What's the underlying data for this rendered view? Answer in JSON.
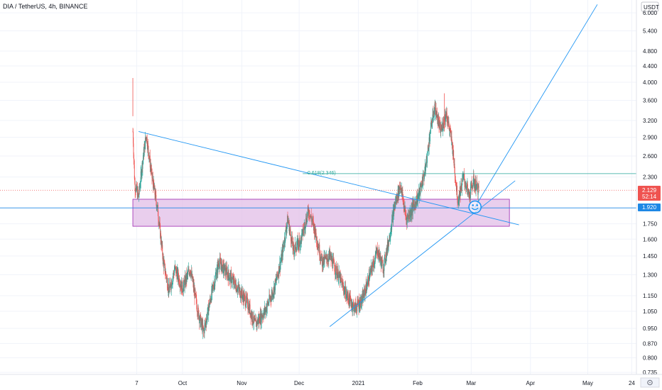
{
  "header": {
    "symbol_title": "DIA / TetherUS, 4h, BINANCE"
  },
  "colors": {
    "up": "#26a69a",
    "down": "#ef5350",
    "line": "#2196f3",
    "zone_fill": "#e1bee7",
    "zone_border": "#9c27b0",
    "level_line": "#1e88e5",
    "fib_line": "#26a69a",
    "price_tag": "#ef5350"
  },
  "chart_data": {
    "type": "candlestick",
    "title": "DIA / TetherUS, 4h, BINANCE",
    "y_scale": "log",
    "currency": "USDT",
    "ylim": [
      0.71,
      6.3
    ],
    "x_tick_labels": [
      "7",
      "Oct",
      "Nov",
      "Dec",
      "2021",
      "Feb",
      "Mar",
      "Apr",
      "May",
      "24"
    ],
    "y_tick_labels": [
      "6.000",
      "5.400",
      "4.800",
      "4.400",
      "4.000",
      "3.600",
      "3.200",
      "2.900",
      "2.600",
      "2.300",
      "1.750",
      "1.600",
      "1.450",
      "1.300",
      "1.150",
      "1.050",
      "0.950",
      "0.870",
      "0.800",
      "0.735"
    ],
    "y_ticks": [
      6.0,
      5.4,
      4.8,
      4.4,
      4.0,
      3.6,
      3.2,
      2.9,
      2.6,
      2.3,
      1.75,
      1.6,
      1.45,
      1.3,
      1.15,
      1.05,
      0.95,
      0.87,
      0.8,
      0.735
    ],
    "last_price": {
      "label": "2.129",
      "value": 2.129,
      "countdown": "52:14"
    },
    "support_level": {
      "label": "1.920",
      "value": 1.92
    },
    "fib_level": {
      "label": "0.618(2.346)",
      "value": 2.346
    },
    "zone": {
      "top": 2.02,
      "bottom": 1.725
    },
    "price_path": [
      [
        "Sep 05",
        3.0
      ],
      [
        "Sep 06",
        2.2
      ],
      [
        "Sep 08",
        2.05
      ],
      [
        "Sep 10",
        2.5
      ],
      [
        "Sep 12",
        2.95
      ],
      [
        "Sep 15",
        2.3
      ],
      [
        "Sep 18",
        1.9
      ],
      [
        "Sep 21",
        1.4
      ],
      [
        "Sep 24",
        1.18
      ],
      [
        "Sep 27",
        1.35
      ],
      [
        "Oct 01",
        1.2
      ],
      [
        "Oct 05",
        1.35
      ],
      [
        "Oct 09",
        1.05
      ],
      [
        "Oct 12",
        0.93
      ],
      [
        "Oct 16",
        1.15
      ],
      [
        "Oct 20",
        1.4
      ],
      [
        "Oct 25",
        1.3
      ],
      [
        "Oct 30",
        1.2
      ],
      [
        "Nov 04",
        1.1
      ],
      [
        "Nov 08",
        0.97
      ],
      [
        "Nov 13",
        1.05
      ],
      [
        "Nov 18",
        1.2
      ],
      [
        "Nov 22",
        1.45
      ],
      [
        "Nov 25",
        1.8
      ],
      [
        "Nov 28",
        1.5
      ],
      [
        "Dec 02",
        1.6
      ],
      [
        "Dec 06",
        1.9
      ],
      [
        "Dec 09",
        1.7
      ],
      [
        "Dec 13",
        1.4
      ],
      [
        "Dec 17",
        1.45
      ],
      [
        "Dec 22",
        1.28
      ],
      [
        "Dec 26",
        1.15
      ],
      [
        "Dec 30",
        1.07
      ],
      [
        "Jan 03",
        1.12
      ],
      [
        "Jan 07",
        1.3
      ],
      [
        "Jan 11",
        1.5
      ],
      [
        "Jan 14",
        1.35
      ],
      [
        "Jan 17",
        1.6
      ],
      [
        "Jan 20",
        1.95
      ],
      [
        "Jan 23",
        2.2
      ],
      [
        "Jan 26",
        1.8
      ],
      [
        "Jan 29",
        1.9
      ],
      [
        "Feb 02",
        2.1
      ],
      [
        "Feb 05",
        2.4
      ],
      [
        "Feb 08",
        3.1
      ],
      [
        "Feb 10",
        3.45
      ],
      [
        "Feb 13",
        3.0
      ],
      [
        "Feb 16",
        3.35
      ],
      [
        "Feb 19",
        2.8
      ],
      [
        "Feb 22",
        2.0
      ],
      [
        "Feb 25",
        2.3
      ],
      [
        "Feb 28",
        2.05
      ],
      [
        "Mar 02",
        2.25
      ],
      [
        "Mar 05",
        2.129
      ]
    ],
    "highlights": [
      [
        "Sep 05",
        4.1
      ],
      [
        "Feb 15",
        3.75
      ]
    ]
  }
}
